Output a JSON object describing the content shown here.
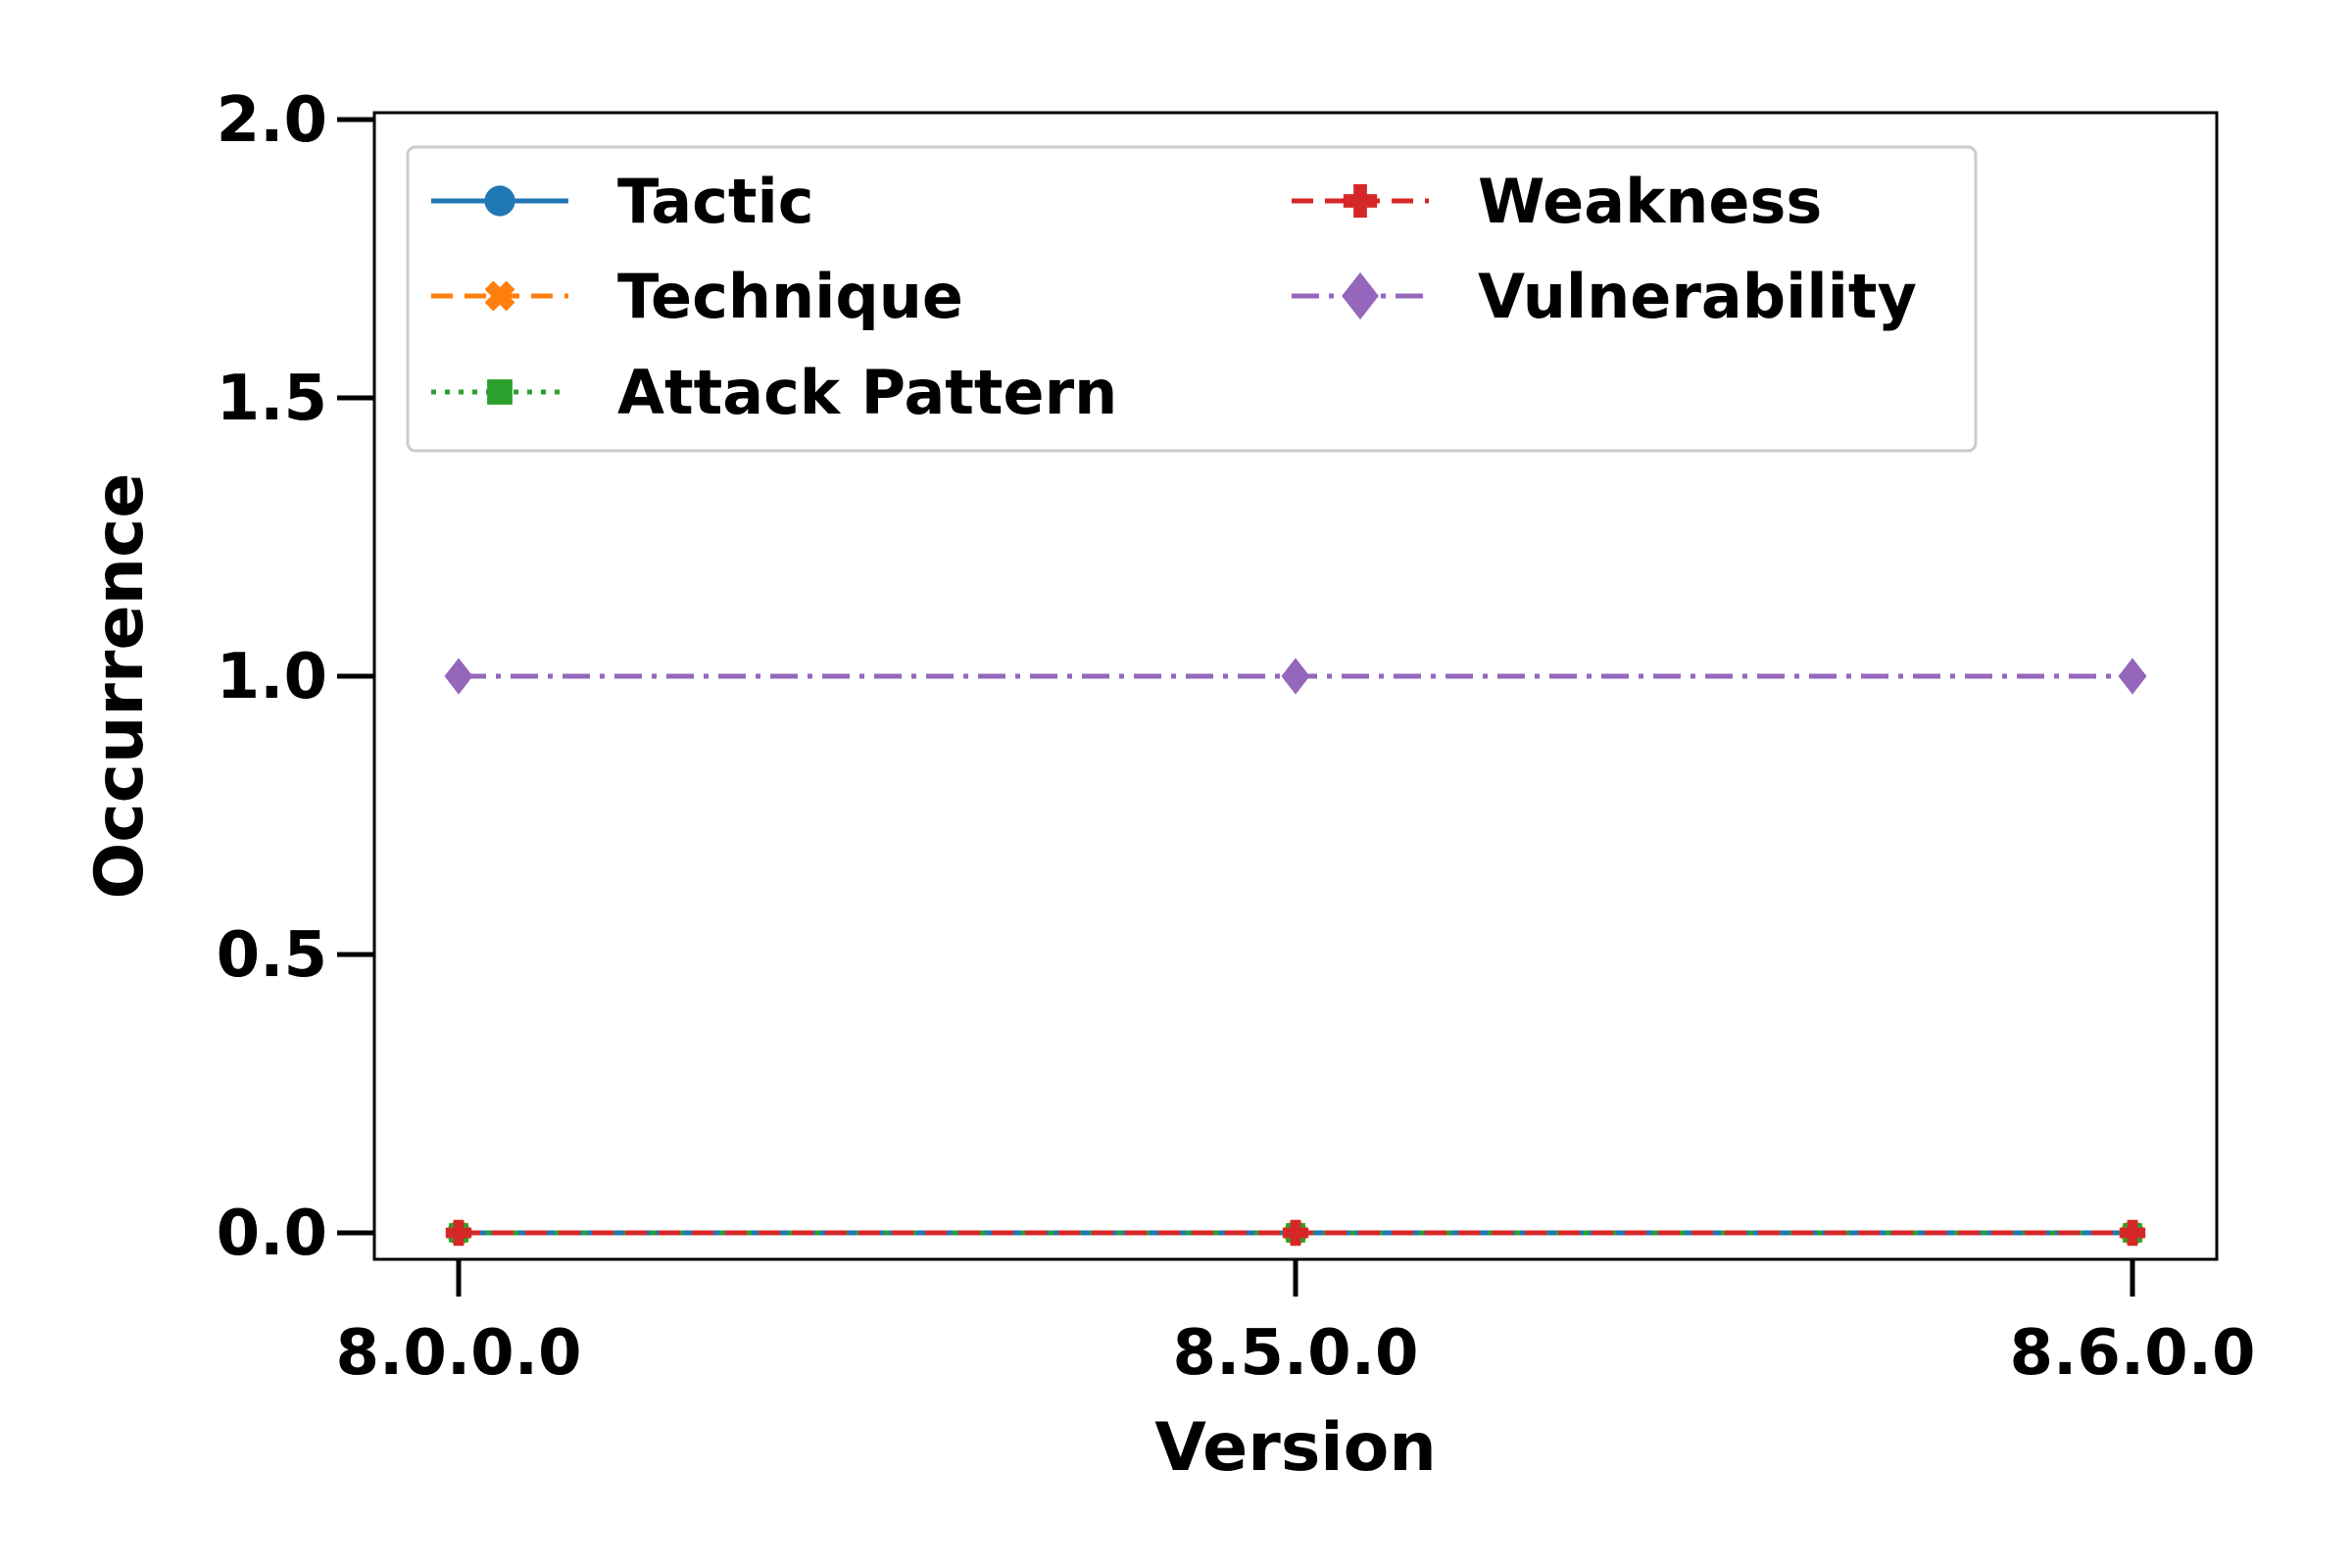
{
  "chart_data": {
    "type": "line",
    "title": "",
    "xlabel": "Version",
    "ylabel": "Occurrence",
    "categories": [
      "8.0.0.0",
      "8.5.0.0",
      "8.6.0.0"
    ],
    "ylim": [
      0,
      2.0
    ],
    "yticks": [
      "0.0",
      "0.5",
      "1.0",
      "1.5",
      "2.0"
    ],
    "grid": false,
    "legend_position": "top",
    "series": [
      {
        "name": "Tactic",
        "values": [
          0,
          0,
          0
        ],
        "color": "#1f77b4",
        "marker": "circle",
        "linestyle": "solid"
      },
      {
        "name": "Technique",
        "values": [
          0,
          0,
          0
        ],
        "color": "#ff7f0e",
        "marker": "x",
        "linestyle": "dashed"
      },
      {
        "name": "Attack Pattern",
        "values": [
          0,
          0,
          0
        ],
        "color": "#2ca02c",
        "marker": "square",
        "linestyle": "dotted"
      },
      {
        "name": "Weakness",
        "values": [
          0,
          0,
          0
        ],
        "color": "#d62728",
        "marker": "plus",
        "linestyle": "dashed"
      },
      {
        "name": "Vulnerability",
        "values": [
          1,
          1,
          1
        ],
        "color": "#9467bd",
        "marker": "diamond",
        "linestyle": "dashdot"
      }
    ]
  }
}
